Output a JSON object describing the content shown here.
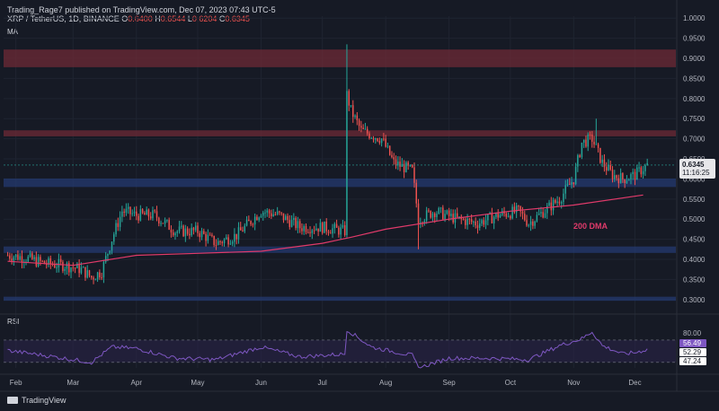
{
  "header": {
    "publisher": "Trading_Rage7 published on TradingView.com, Dec 07, 2023 07:43 UTC-5",
    "symbol": "XRP / TetherUS, 1D, BINANCE",
    "o_label": "O",
    "o_value": "0.6400",
    "h_label": "H",
    "h_value": "0.6544",
    "l_label": "L",
    "l_value": "0.6204",
    "c_label": "C",
    "c_value": "0.6345"
  },
  "indicators": {
    "ma": "MA",
    "rsi": "RSI"
  },
  "annotation_dma": "200 DMA",
  "footer": {
    "brand": "TradingView"
  },
  "price_badge": {
    "price": "0.6345",
    "countdown": "11:16:25"
  },
  "rsi_badges": [
    "56.49",
    "52.29",
    "47.24"
  ],
  "colors": {
    "background": "#161a25",
    "up": "#26a69a",
    "down": "#ef5350",
    "resistance_zone": "#6e2a35",
    "support_zone": "#243a70",
    "ma_line": "#e03a6a",
    "rsi_line": "#7e57c2"
  },
  "chart_data": [
    {
      "type": "candlestick",
      "title": "XRP / TetherUS, 1D, BINANCE",
      "x_ticks": [
        "Feb",
        "Mar",
        "Apr",
        "May",
        "Jun",
        "Jul",
        "Aug",
        "Sep",
        "Oct",
        "Nov",
        "Dec"
      ],
      "y_ticks": [
        "1.0000",
        "0.9500",
        "0.9000",
        "0.8500",
        "0.8000",
        "0.7500",
        "0.7000",
        "0.6500",
        "0.6000",
        "0.5500",
        "0.5000",
        "0.4500",
        "0.4000",
        "0.3500",
        "0.3000"
      ],
      "ylim": [
        0.275,
        1.005
      ],
      "zones": [
        {
          "kind": "resistance",
          "from": 0.878,
          "to": 0.922
        },
        {
          "kind": "resistance",
          "from": 0.706,
          "to": 0.721
        },
        {
          "kind": "support",
          "from": 0.58,
          "to": 0.601
        },
        {
          "kind": "support",
          "from": 0.416,
          "to": 0.432
        },
        {
          "kind": "support",
          "from": 0.297,
          "to": 0.307
        }
      ],
      "price_points": [
        [
          "Jan 28",
          0.41
        ],
        [
          "Feb 5",
          0.405
        ],
        [
          "Feb 15",
          0.39
        ],
        [
          "Feb 25",
          0.385
        ],
        [
          "Mar 5",
          0.375
        ],
        [
          "Mar 10",
          0.355
        ],
        [
          "Mar 15",
          0.37
        ],
        [
          "Mar 20",
          0.45
        ],
        [
          "Mar 25",
          0.52
        ],
        [
          "Apr 1",
          0.51
        ],
        [
          "Apr 10",
          0.51
        ],
        [
          "Apr 20",
          0.47
        ],
        [
          "May 1",
          0.47
        ],
        [
          "May 10",
          0.44
        ],
        [
          "May 20",
          0.46
        ],
        [
          "Jun 1",
          0.52
        ],
        [
          "Jun 10",
          0.51
        ],
        [
          "Jun 20",
          0.48
        ],
        [
          "Jul 1",
          0.48
        ],
        [
          "Jul 12",
          0.47
        ],
        [
          "Jul 13",
          0.81
        ],
        [
          "Jul 15",
          0.77
        ],
        [
          "Jul 20",
          0.72
        ],
        [
          "Jul 30",
          0.7
        ],
        [
          "Aug 5",
          0.64
        ],
        [
          "Aug 14",
          0.62
        ],
        [
          "Aug 17",
          0.5
        ],
        [
          "Aug 25",
          0.52
        ],
        [
          "Sep 5",
          0.5
        ],
        [
          "Sep 15",
          0.49
        ],
        [
          "Sep 25",
          0.51
        ],
        [
          "Oct 5",
          0.52
        ],
        [
          "Oct 10",
          0.49
        ],
        [
          "Oct 20",
          0.53
        ],
        [
          "Oct 25",
          0.55
        ],
        [
          "Nov 1",
          0.6
        ],
        [
          "Nov 5",
          0.69
        ],
        [
          "Nov 10",
          0.7
        ],
        [
          "Nov 15",
          0.64
        ],
        [
          "Nov 20",
          0.61
        ],
        [
          "Nov 25",
          0.6
        ],
        [
          "Dec 1",
          0.61
        ],
        [
          "Dec 7",
          0.6345
        ]
      ],
      "ma_200": [
        [
          "Jan 28",
          0.395
        ],
        [
          "Mar 1",
          0.385
        ],
        [
          "Apr 1",
          0.41
        ],
        [
          "May 1",
          0.415
        ],
        [
          "Jun 1",
          0.42
        ],
        [
          "Jul 1",
          0.44
        ],
        [
          "Jul 15",
          0.455
        ],
        [
          "Aug 1",
          0.475
        ],
        [
          "Sep 1",
          0.5
        ],
        [
          "Oct 1",
          0.52
        ],
        [
          "Nov 1",
          0.535
        ],
        [
          "Dec 5",
          0.56
        ]
      ]
    },
    {
      "type": "line",
      "title": "RSI",
      "ylim": [
        30,
        88
      ],
      "y_ticks": [
        "80.00"
      ],
      "bands": [
        70,
        30
      ],
      "points": [
        [
          "Jan 28",
          55
        ],
        [
          "Feb 15",
          48
        ],
        [
          "Mar 10",
          38
        ],
        [
          "Mar 20",
          60
        ],
        [
          "Apr 1",
          58
        ],
        [
          "Apr 20",
          44
        ],
        [
          "May 10",
          42
        ],
        [
          "Jun 1",
          60
        ],
        [
          "Jun 20",
          46
        ],
        [
          "Jul 12",
          50
        ],
        [
          "Jul 13",
          85
        ],
        [
          "Jul 25",
          60
        ],
        [
          "Aug 14",
          48
        ],
        [
          "Aug 17",
          30
        ],
        [
          "Sep 1",
          44
        ],
        [
          "Sep 20",
          44
        ],
        [
          "Oct 10",
          42
        ],
        [
          "Oct 25",
          62
        ],
        [
          "Nov 5",
          72
        ],
        [
          "Nov 10",
          82
        ],
        [
          "Nov 15",
          62
        ],
        [
          "Nov 25",
          50
        ],
        [
          "Dec 1",
          52
        ],
        [
          "Dec 7",
          56.49
        ]
      ]
    }
  ]
}
